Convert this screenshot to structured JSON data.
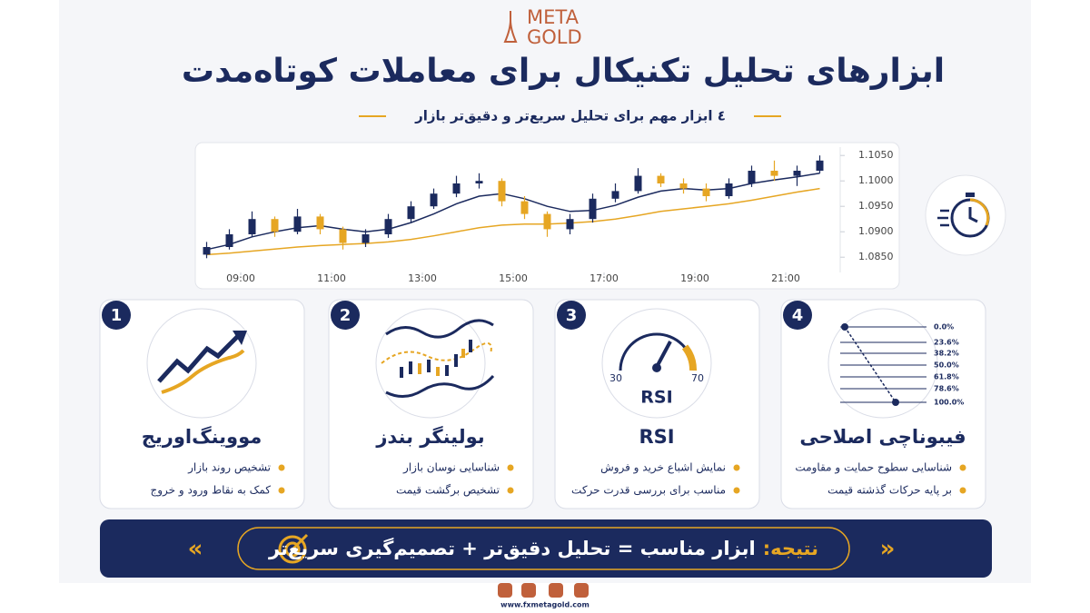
{
  "logo": {
    "line1": "META",
    "line2": "GOLD"
  },
  "header": {
    "title": "ابزارهای تحلیل تکنیکال برای معاملات کوتاه‌مدت",
    "subtitle": "٤ ابزار مهم برای تحلیل سریع‌تر و دقیق‌تر بازار"
  },
  "chart_data": {
    "type": "candlestick",
    "x": [
      8.25,
      8.75,
      9.25,
      9.75,
      10.25,
      10.75,
      11.25,
      11.75,
      12.25,
      12.75,
      13.25,
      13.75,
      14.25,
      14.75,
      15.25,
      15.75,
      16.25,
      16.75,
      17.25,
      17.75,
      18.25,
      18.75,
      19.25,
      19.75,
      20.25,
      20.75,
      21.25,
      21.75
    ],
    "open": [
      1.0855,
      1.087,
      1.0895,
      1.0925,
      1.09,
      1.093,
      1.0905,
      1.0878,
      1.0895,
      1.0925,
      1.095,
      1.0975,
      1.0995,
      1.1,
      1.096,
      1.0935,
      1.0905,
      1.0925,
      1.0965,
      1.098,
      1.101,
      1.0995,
      1.0985,
      1.097,
      1.0995,
      1.102,
      1.101,
      1.102
    ],
    "high": [
      1.088,
      1.0905,
      1.094,
      1.093,
      1.0945,
      1.0935,
      1.091,
      1.0905,
      1.0935,
      1.096,
      1.0985,
      1.101,
      1.1015,
      1.1005,
      1.097,
      1.094,
      1.0935,
      1.0975,
      1.0995,
      1.1025,
      1.1015,
      1.1005,
      1.0995,
      1.1005,
      1.103,
      1.104,
      1.103,
      1.105
    ],
    "low": [
      1.0848,
      1.0865,
      1.089,
      1.089,
      1.0895,
      1.0895,
      1.0865,
      1.087,
      1.0888,
      1.0918,
      1.0945,
      1.0968,
      1.0985,
      1.095,
      1.0925,
      1.089,
      1.0895,
      1.0918,
      1.0958,
      1.0975,
      1.0988,
      1.0975,
      1.096,
      1.0965,
      1.0988,
      1.1,
      1.099,
      1.1015
    ],
    "close": [
      1.087,
      1.0895,
      1.0925,
      1.09,
      1.093,
      1.0905,
      1.0878,
      1.0895,
      1.0925,
      1.095,
      1.0975,
      1.0995,
      1.1,
      1.096,
      1.0935,
      1.0905,
      1.0925,
      1.0965,
      1.098,
      1.101,
      1.0995,
      1.0985,
      1.097,
      1.0995,
      1.102,
      1.101,
      1.102,
      1.104
    ],
    "up_color": "#1b2a5e",
    "down_color": "#e6a623",
    "series": [
      {
        "color": "#1b2a5e",
        "values": [
          1.0865,
          1.0875,
          1.089,
          1.09,
          1.0908,
          1.0912,
          1.0905,
          1.09,
          1.0905,
          1.0918,
          1.0935,
          1.0955,
          1.097,
          1.0975,
          1.0965,
          1.095,
          1.094,
          1.0942,
          1.0952,
          1.0968,
          1.098,
          1.0985,
          1.0982,
          1.0985,
          1.0995,
          1.1002,
          1.1008,
          1.1015
        ]
      },
      {
        "color": "#e6a623",
        "values": [
          1.0855,
          1.0858,
          1.0862,
          1.0866,
          1.087,
          1.0873,
          1.0875,
          1.0877,
          1.088,
          1.0885,
          1.0892,
          1.09,
          1.0908,
          1.0913,
          1.0915,
          1.0915,
          1.0917,
          1.092,
          1.0925,
          1.0932,
          1.094,
          1.0945,
          1.095,
          1.0955,
          1.0962,
          1.097,
          1.0978,
          1.0985
        ]
      }
    ],
    "xlim": [
      8,
      22
    ],
    "xticks": [
      {
        "value": 9,
        "label": "09:00"
      },
      {
        "value": 11,
        "label": "11:00"
      },
      {
        "value": 13,
        "label": "13:00"
      },
      {
        "value": 15,
        "label": "15:00"
      },
      {
        "value": 17,
        "label": "17:00"
      },
      {
        "value": 19,
        "label": "19:00"
      },
      {
        "value": 21,
        "label": "21:00"
      }
    ],
    "ylim": [
      1.082,
      1.107
    ],
    "yticks": [
      {
        "value": 1.085,
        "label": "1.0850"
      },
      {
        "value": 1.09,
        "label": "1.0900"
      },
      {
        "value": 1.095,
        "label": "1.0950"
      },
      {
        "value": 1.1,
        "label": "1.1000"
      },
      {
        "value": 1.105,
        "label": "1.1050"
      }
    ]
  },
  "cards": [
    {
      "number": "1",
      "title": "مووینگ‌اوریج",
      "bullets": [
        "تشخیص روند بازار",
        "کمک به نقاط ورود و خروج"
      ]
    },
    {
      "number": "2",
      "title": "بولینگر بندز",
      "bullets": [
        "شناسایی نوسان بازار",
        "تشخیص برگشت قیمت"
      ]
    },
    {
      "number": "3",
      "title": "RSI",
      "bullets": [
        "نمایش اشباع خرید و فروش",
        "مناسب برای بررسی قدرت حرکت"
      ],
      "gauge": {
        "low": "30",
        "high": "70",
        "label": "RSI"
      }
    },
    {
      "number": "4",
      "title": "فیبوناچی اصلاحی",
      "bullets": [
        "شناسایی سطوح حمایت و مقاومت",
        "بر پایه حرکات گذشته قیمت"
      ],
      "levels": [
        "0.0%",
        "23.6%",
        "38.2%",
        "50.0%",
        "61.8%",
        "78.6%",
        "100.0%"
      ]
    }
  ],
  "conclusion": {
    "label": "نتیجه:",
    "text": "ابزار مناسب = تحلیل دقیق‌تر + تصمیم‌گیری سریع‌تر"
  },
  "footer": {
    "website": "www.fxmetagold.com"
  }
}
